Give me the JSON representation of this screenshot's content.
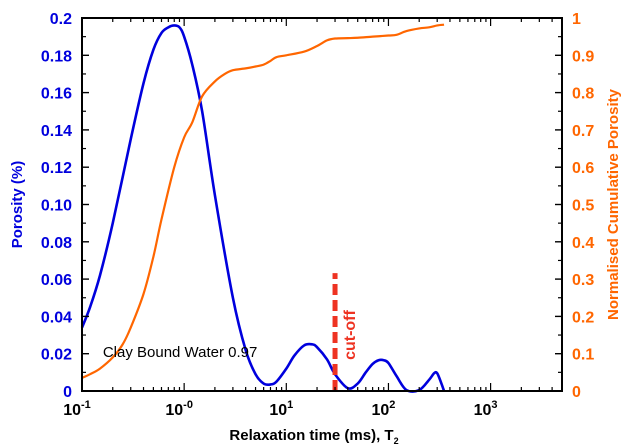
{
  "chart_data": {
    "type": "line",
    "x_scale": "log",
    "xlim": [
      0.1,
      5000
    ],
    "y_left_lim": [
      0,
      0.2
    ],
    "y_right_lim": [
      0,
      1
    ],
    "grid": false,
    "colors": {
      "left_axis": "#0000dd",
      "right_axis": "#ff6600",
      "cutoff": "#ee3322"
    },
    "x_ticks": [
      {
        "value": 0.1,
        "base": "10",
        "exp": "-1"
      },
      {
        "value": 1,
        "base": "10",
        "exp": "-0"
      },
      {
        "value": 10,
        "base": "10",
        "exp": "1"
      },
      {
        "value": 100,
        "base": "10",
        "exp": "2"
      },
      {
        "value": 1000,
        "base": "10",
        "exp": "3"
      }
    ],
    "y_left_ticks": [
      {
        "value": 0,
        "label": "0"
      },
      {
        "value": 0.02,
        "label": "0.02"
      },
      {
        "value": 0.04,
        "label": "0.04"
      },
      {
        "value": 0.06,
        "label": "0.06"
      },
      {
        "value": 0.08,
        "label": "0.08"
      },
      {
        "value": 0.1,
        "label": "0.10"
      },
      {
        "value": 0.12,
        "label": "0.12"
      },
      {
        "value": 0.14,
        "label": "0.14"
      },
      {
        "value": 0.16,
        "label": "0.16"
      },
      {
        "value": 0.18,
        "label": "0.18"
      },
      {
        "value": 0.2,
        "label": "0.2"
      }
    ],
    "y_right_ticks": [
      {
        "value": 0,
        "label": "0"
      },
      {
        "value": 0.1,
        "label": "0.1"
      },
      {
        "value": 0.2,
        "label": "0.2"
      },
      {
        "value": 0.3,
        "label": "0.3"
      },
      {
        "value": 0.4,
        "label": "0.4"
      },
      {
        "value": 0.5,
        "label": "0.5"
      },
      {
        "value": 0.6,
        "label": "0.6"
      },
      {
        "value": 0.7,
        "label": "0.7"
      },
      {
        "value": 0.8,
        "label": "0.8"
      },
      {
        "value": 0.9,
        "label": "0.9"
      },
      {
        "value": 1,
        "label": "1"
      }
    ],
    "xlabel": "Relaxation time (ms), T",
    "xlabel_sub": "2",
    "ylabel_left": "Porosity (%)",
    "ylabel_right": "Normalised Cumulative Porosity",
    "series": [
      {
        "axis": "left",
        "color": "#0000dd",
        "x": [
          0.1,
          0.12,
          0.15,
          0.2,
          0.3,
          0.4,
          0.5,
          0.6,
          0.7,
          0.8,
          0.9,
          1.0,
          1.2,
          1.5,
          2,
          3,
          4,
          5,
          6,
          7,
          8,
          10,
          12,
          15,
          18,
          20,
          25,
          30,
          40,
          50,
          60,
          70,
          80,
          90,
          100,
          120,
          150,
          200,
          250,
          280,
          300,
          330,
          350
        ],
        "y": [
          0.034,
          0.045,
          0.062,
          0.09,
          0.135,
          0.165,
          0.183,
          0.192,
          0.195,
          0.196,
          0.195,
          0.19,
          0.175,
          0.15,
          0.105,
          0.05,
          0.022,
          0.009,
          0.004,
          0.0035,
          0.005,
          0.012,
          0.019,
          0.0245,
          0.025,
          0.0235,
          0.017,
          0.009,
          0.0015,
          0.004,
          0.01,
          0.0145,
          0.0165,
          0.0165,
          0.015,
          0.008,
          0.0005,
          0.0005,
          0.006,
          0.0095,
          0.0095,
          0.004,
          0.0
        ]
      },
      {
        "axis": "right",
        "color": "#ff6600",
        "x": [
          0.1,
          0.12,
          0.15,
          0.2,
          0.25,
          0.3,
          0.4,
          0.5,
          0.6,
          0.8,
          1.0,
          1.2,
          1.5,
          2,
          2.5,
          3,
          4,
          5,
          6,
          7,
          8,
          10,
          15,
          20,
          25,
          30,
          40,
          50,
          70,
          100,
          120,
          150,
          200,
          250,
          300,
          350
        ],
        "y": [
          0.035,
          0.045,
          0.06,
          0.09,
          0.125,
          0.17,
          0.26,
          0.36,
          0.46,
          0.6,
          0.68,
          0.72,
          0.79,
          0.83,
          0.85,
          0.86,
          0.865,
          0.87,
          0.875,
          0.885,
          0.895,
          0.9,
          0.91,
          0.925,
          0.94,
          0.945,
          0.946,
          0.947,
          0.95,
          0.953,
          0.955,
          0.965,
          0.972,
          0.975,
          0.98,
          0.982
        ]
      }
    ],
    "cutoff": {
      "x": 30,
      "y_from": 0,
      "y_to": 0.06,
      "label": "cut-off"
    },
    "annotations": [
      {
        "text": "Clay Bound Water 0.97",
        "x": 0.16,
        "y": 0.021
      }
    ]
  }
}
